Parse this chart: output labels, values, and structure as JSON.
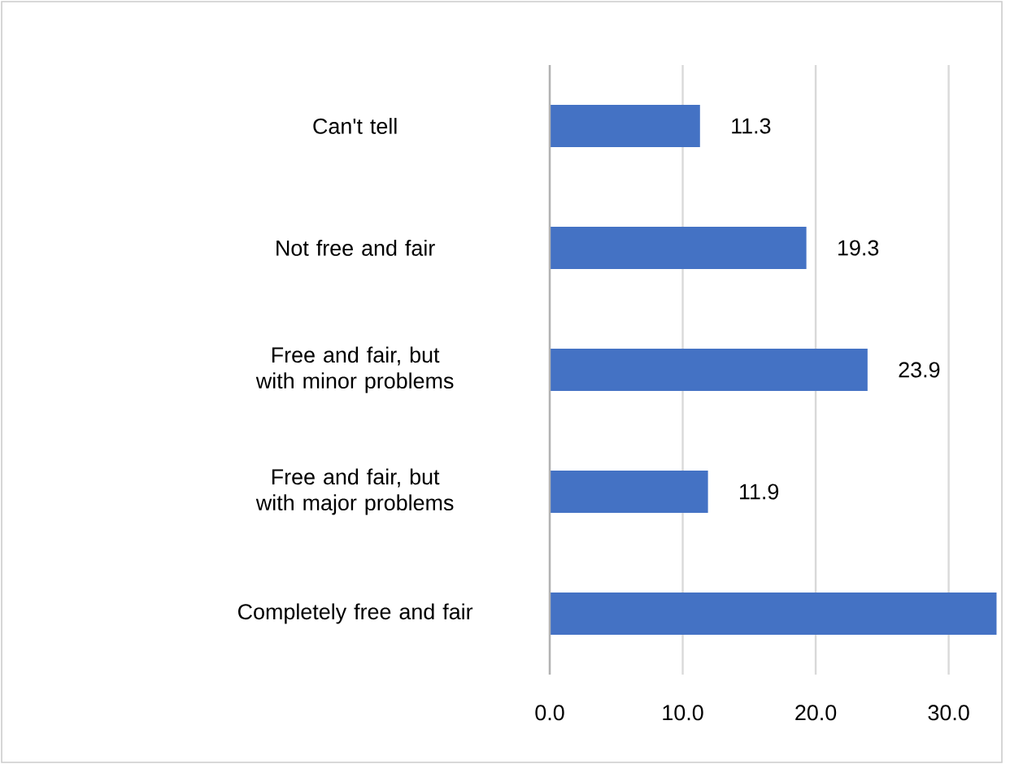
{
  "chart_data": {
    "type": "bar",
    "orientation": "horizontal",
    "categories": [
      "Can't tell",
      "Not free and fair",
      "Free and fair, but with minor problems",
      "Free and fair, but with major problems",
      "Completely free and fair"
    ],
    "values": [
      11.3,
      19.3,
      23.9,
      11.9,
      33.6
    ],
    "value_labels": [
      "11.3",
      "19.3",
      "23.9",
      "11.9",
      null
    ],
    "color": "#4472c4",
    "xlim": [
      0,
      34
    ],
    "xticks": [
      {
        "value": 0,
        "label": "0.0"
      },
      {
        "value": 10,
        "label": "10.0"
      },
      {
        "value": 20,
        "label": "20.0"
      },
      {
        "value": 30,
        "label": "30.0"
      }
    ],
    "grid": "x"
  }
}
